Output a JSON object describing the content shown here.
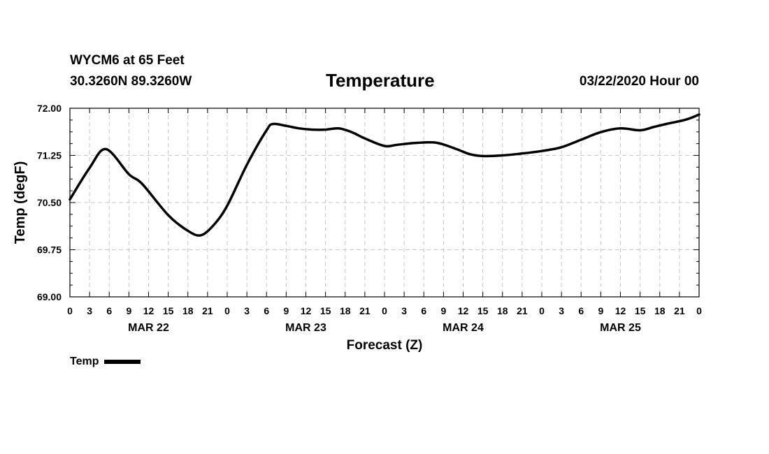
{
  "header": {
    "station": "WYCM6 at 65 Feet",
    "coords": "30.3260N 89.3260W",
    "title": "Temperature",
    "run": "03/22/2020 Hour 00"
  },
  "legend": {
    "label": "Temp"
  },
  "chart_data": {
    "type": "line",
    "title": "Temperature",
    "ylabel": "Temp (degF)",
    "xlabel": "Forecast (Z)",
    "ylim": [
      69.0,
      72.0
    ],
    "yticks": [
      "72.00",
      "71.25",
      "70.50",
      "69.75",
      "69.00"
    ],
    "xlim_hours": [
      0,
      96
    ],
    "xtick_step_hours": 3,
    "xtick_labels": [
      "0",
      "3",
      "6",
      "9",
      "12",
      "15",
      "18",
      "21",
      "0",
      "3",
      "6",
      "9",
      "12",
      "15",
      "18",
      "21",
      "0",
      "3",
      "6",
      "9",
      "12",
      "15",
      "18",
      "21",
      "0",
      "3",
      "6",
      "9",
      "12",
      "15",
      "18",
      "21",
      "0"
    ],
    "day_labels": [
      {
        "label": "MAR 22",
        "hour": 12
      },
      {
        "label": "MAR 23",
        "hour": 36
      },
      {
        "label": "MAR 24",
        "hour": 60
      },
      {
        "label": "MAR 25",
        "hour": 84
      }
    ],
    "grid": true,
    "series": [
      {
        "name": "Temp",
        "color": "#000000",
        "x": [
          0,
          3,
          5.5,
          9,
          11,
          15,
          18,
          20,
          22,
          24,
          27,
          30,
          31,
          33,
          35,
          37,
          39,
          41,
          43,
          45,
          48,
          50,
          53,
          56,
          59,
          61,
          63,
          66,
          69,
          72,
          75,
          78,
          81,
          84,
          87,
          89,
          91,
          94,
          96
        ],
        "y": [
          70.55,
          71.05,
          71.35,
          70.95,
          70.8,
          70.3,
          70.05,
          69.98,
          70.15,
          70.45,
          71.1,
          71.65,
          71.75,
          71.72,
          71.68,
          71.66,
          71.66,
          71.68,
          71.62,
          71.52,
          71.4,
          71.42,
          71.45,
          71.45,
          71.35,
          71.27,
          71.24,
          71.25,
          71.28,
          71.32,
          71.38,
          71.5,
          71.62,
          71.68,
          71.65,
          71.7,
          71.75,
          71.82,
          71.9
        ]
      }
    ]
  }
}
